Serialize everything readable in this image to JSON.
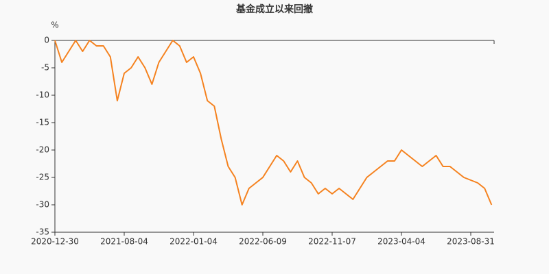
{
  "chart_data": {
    "type": "line",
    "title": "基金成立以来回撤",
    "y_unit": "%",
    "categories": [
      "2020-12-30",
      null,
      null,
      null,
      null,
      null,
      null,
      null,
      null,
      null,
      "2021-08-04",
      null,
      null,
      null,
      null,
      null,
      null,
      null,
      null,
      null,
      "2022-01-04",
      null,
      null,
      null,
      null,
      null,
      null,
      null,
      null,
      null,
      "2022-06-09",
      null,
      null,
      null,
      null,
      null,
      null,
      null,
      null,
      null,
      "2022-11-07",
      null,
      null,
      null,
      null,
      null,
      null,
      null,
      null,
      null,
      "2023-04-04",
      null,
      null,
      null,
      null,
      null,
      null,
      null,
      null,
      null,
      "2023-08-31",
      null,
      null,
      null
    ],
    "series": [
      {
        "name": "基金成立以来回撤",
        "color": "#f5821f",
        "values": [
          0,
          -4,
          -2,
          0,
          -2,
          0,
          -1,
          -1,
          -3,
          -11,
          -6,
          -5,
          -3,
          -5,
          -8,
          -4,
          -2,
          0,
          -1,
          -4,
          -3,
          -6,
          -11,
          -12,
          -18,
          -23,
          -25,
          -30,
          -27,
          -26,
          -25,
          -23,
          -21,
          -22,
          -24,
          -22,
          -25,
          -26,
          -28,
          -27,
          -28,
          -27,
          -28,
          -29,
          -27,
          -25,
          -24,
          -23,
          -22,
          -22,
          -20,
          -21,
          -22,
          -23,
          -22,
          -21,
          -23,
          -23,
          -24,
          -25,
          -25.5,
          -26,
          -27,
          -30
        ]
      }
    ],
    "ylim": [
      -35,
      0
    ],
    "yticks": [
      0,
      -5,
      -10,
      -15,
      -20,
      -25,
      -30,
      -35
    ],
    "grid": false
  }
}
